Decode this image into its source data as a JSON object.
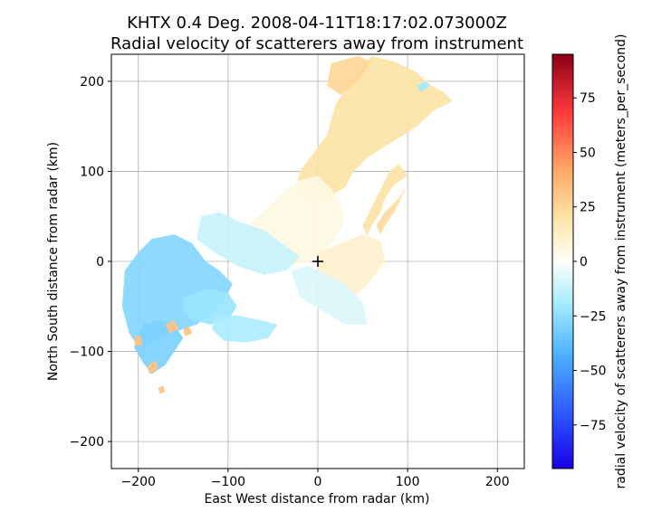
{
  "chart_data": {
    "type": "heatmap",
    "title_line1": "KHTX 0.4 Deg. 2008-04-11T18:17:02.073000Z",
    "title_line2": "Radial velocity of scatterers away from instrument",
    "xlabel": "East West distance from radar (km)",
    "ylabel": "North South distance from radar (km)",
    "xlim": [
      -230,
      230
    ],
    "ylim": [
      -230,
      230
    ],
    "xticks": [
      -200,
      -100,
      0,
      100,
      200
    ],
    "yticks": [
      -200,
      -100,
      0,
      100,
      200
    ],
    "xtick_labels": [
      "−200",
      "−100",
      "0",
      "100",
      "200"
    ],
    "ytick_labels": [
      "−200",
      "−100",
      "0",
      "100",
      "200"
    ],
    "grid": true,
    "radar_marker": {
      "x": 0,
      "y": 0,
      "symbol": "+"
    },
    "colorbar": {
      "label": "radial velocity of scatterers away from instrument (meters_per_second)",
      "range": [
        -95,
        95
      ],
      "ticks": [
        -75,
        -50,
        -25,
        0,
        25,
        50,
        75
      ],
      "tick_labels": [
        "−75",
        "−50",
        "−25",
        "0",
        "25",
        "50",
        "75"
      ],
      "colormap": "pyart_BuDRd18"
    },
    "regions": [
      {
        "name": "north-east",
        "velocity": 20,
        "polygon": [
          [
            -20,
            100
          ],
          [
            10,
            140
          ],
          [
            20,
            175
          ],
          [
            40,
            205
          ],
          [
            60,
            228
          ],
          [
            85,
            222
          ],
          [
            110,
            210
          ],
          [
            125,
            196
          ],
          [
            140,
            188
          ],
          [
            150,
            178
          ],
          [
            130,
            168
          ],
          [
            110,
            150
          ],
          [
            95,
            140
          ],
          [
            75,
            128
          ],
          [
            55,
            115
          ],
          [
            40,
            100
          ],
          [
            30,
            82
          ],
          [
            10,
            70
          ],
          [
            -10,
            70
          ],
          [
            -25,
            80
          ]
        ]
      },
      {
        "name": "north-east-outer",
        "velocity": 25,
        "polygon": [
          [
            15,
            220
          ],
          [
            45,
            228
          ],
          [
            60,
            222
          ],
          [
            45,
            200
          ],
          [
            25,
            185
          ],
          [
            10,
            195
          ]
        ]
      },
      {
        "name": "north-east-band",
        "velocity": 20,
        "polygon": [
          [
            80,
            100
          ],
          [
            90,
            108
          ],
          [
            100,
            95
          ],
          [
            85,
            85
          ],
          [
            75,
            70
          ],
          [
            70,
            55
          ],
          [
            60,
            40
          ],
          [
            55,
            28
          ],
          [
            50,
            40
          ],
          [
            60,
            60
          ],
          [
            70,
            80
          ]
        ]
      },
      {
        "name": "north-east-arc",
        "velocity": 23,
        "polygon": [
          [
            90,
            70
          ],
          [
            100,
            85
          ],
          [
            85,
            55
          ],
          [
            75,
            40
          ],
          [
            70,
            30
          ],
          [
            65,
            40
          ],
          [
            75,
            55
          ]
        ]
      },
      {
        "name": "central-band",
        "velocity": 5,
        "polygon": [
          [
            -80,
            40
          ],
          [
            -60,
            55
          ],
          [
            -40,
            75
          ],
          [
            -20,
            90
          ],
          [
            0,
            95
          ],
          [
            15,
            80
          ],
          [
            25,
            65
          ],
          [
            30,
            45
          ],
          [
            20,
            25
          ],
          [
            5,
            10
          ],
          [
            -10,
            0
          ],
          [
            -30,
            -5
          ],
          [
            -50,
            5
          ],
          [
            -70,
            15
          ],
          [
            -85,
            25
          ]
        ]
      },
      {
        "name": "east-field",
        "velocity": 10,
        "polygon": [
          [
            0,
            10
          ],
          [
            25,
            20
          ],
          [
            50,
            30
          ],
          [
            70,
            22
          ],
          [
            75,
            0
          ],
          [
            60,
            -20
          ],
          [
            40,
            -40
          ],
          [
            10,
            -45
          ],
          [
            0,
            -20
          ]
        ]
      },
      {
        "name": "central-west-band",
        "velocity": -12,
        "polygon": [
          [
            -130,
            50
          ],
          [
            -110,
            55
          ],
          [
            -90,
            45
          ],
          [
            -60,
            35
          ],
          [
            -40,
            20
          ],
          [
            -20,
            5
          ],
          [
            -35,
            -10
          ],
          [
            -60,
            -15
          ],
          [
            -90,
            -5
          ],
          [
            -115,
            10
          ],
          [
            -135,
            25
          ]
        ]
      },
      {
        "name": "near-radar",
        "velocity": -8,
        "polygon": [
          [
            -30,
            -10
          ],
          [
            -10,
            -5
          ],
          [
            10,
            -15
          ],
          [
            30,
            -25
          ],
          [
            50,
            -45
          ],
          [
            55,
            -70
          ],
          [
            30,
            -70
          ],
          [
            5,
            -55
          ],
          [
            -20,
            -40
          ]
        ]
      },
      {
        "name": "south-west",
        "velocity": -28,
        "polygon": [
          [
            -215,
            -10
          ],
          [
            -200,
            10
          ],
          [
            -185,
            25
          ],
          [
            -160,
            30
          ],
          [
            -140,
            20
          ],
          [
            -125,
            0
          ],
          [
            -110,
            -10
          ],
          [
            -95,
            -25
          ],
          [
            -105,
            -45
          ],
          [
            -120,
            -60
          ],
          [
            -135,
            -70
          ],
          [
            -150,
            -75
          ],
          [
            -165,
            -80
          ],
          [
            -185,
            -90
          ],
          [
            -200,
            -95
          ],
          [
            -210,
            -80
          ],
          [
            -218,
            -50
          ]
        ]
      },
      {
        "name": "south-west-tail",
        "velocity": -30,
        "polygon": [
          [
            -195,
            -70
          ],
          [
            -175,
            -65
          ],
          [
            -160,
            -70
          ],
          [
            -150,
            -85
          ],
          [
            -160,
            -100
          ],
          [
            -170,
            -115
          ],
          [
            -185,
            -125
          ],
          [
            -195,
            -112
          ],
          [
            -205,
            -95
          ]
        ]
      },
      {
        "name": "south-west-outflow",
        "velocity": -22,
        "polygon": [
          [
            -150,
            -40
          ],
          [
            -120,
            -30
          ],
          [
            -100,
            -35
          ],
          [
            -90,
            -50
          ],
          [
            -100,
            -65
          ],
          [
            -120,
            -70
          ],
          [
            -140,
            -65
          ],
          [
            -150,
            -55
          ]
        ]
      },
      {
        "name": "south-cluster",
        "velocity": -18,
        "polygon": [
          [
            -115,
            -60
          ],
          [
            -90,
            -60
          ],
          [
            -65,
            -65
          ],
          [
            -45,
            -70
          ],
          [
            -55,
            -85
          ],
          [
            -80,
            -90
          ],
          [
            -105,
            -88
          ],
          [
            -118,
            -75
          ]
        ]
      },
      {
        "name": "south-west-fold-1",
        "velocity": 32,
        "polygon": [
          [
            -205,
            -85
          ],
          [
            -198,
            -82
          ],
          [
            -195,
            -92
          ],
          [
            -203,
            -95
          ]
        ]
      },
      {
        "name": "south-west-fold-2",
        "velocity": 32,
        "polygon": [
          [
            -170,
            -70
          ],
          [
            -160,
            -65
          ],
          [
            -155,
            -75
          ],
          [
            -165,
            -80
          ]
        ]
      },
      {
        "name": "south-west-fold-3",
        "velocity": 32,
        "polygon": [
          [
            -190,
            -115
          ],
          [
            -180,
            -110
          ],
          [
            -178,
            -120
          ],
          [
            -188,
            -125
          ]
        ]
      },
      {
        "name": "south-west-fold-4",
        "velocity": 32,
        "polygon": [
          [
            -150,
            -75
          ],
          [
            -143,
            -72
          ],
          [
            -140,
            -80
          ],
          [
            -148,
            -83
          ]
        ]
      },
      {
        "name": "far-south-speck",
        "velocity": 30,
        "polygon": [
          [
            -178,
            -140
          ],
          [
            -172,
            -138
          ],
          [
            -170,
            -145
          ],
          [
            -176,
            -147
          ]
        ]
      },
      {
        "name": "north-east-cool-streak",
        "velocity": -20,
        "polygon": [
          [
            110,
            195
          ],
          [
            120,
            200
          ],
          [
            125,
            195
          ],
          [
            115,
            188
          ]
        ]
      }
    ]
  }
}
